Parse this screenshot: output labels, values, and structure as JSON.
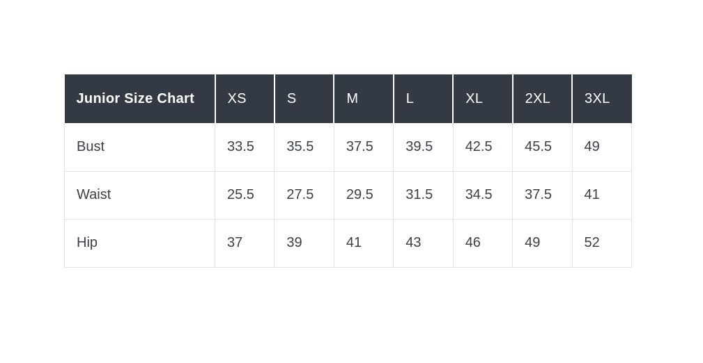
{
  "colors": {
    "header_background": "#343a44",
    "header_text": "#ffffff",
    "header_divider": "#ffffff",
    "body_text": "#3b4046",
    "body_border": "#e1e4e7",
    "page_background": "#ffffff"
  },
  "chart_data": {
    "type": "table",
    "title": "Junior Size Chart",
    "columns": [
      "XS",
      "S",
      "M",
      "L",
      "XL",
      "2XL",
      "3XL"
    ],
    "rows": [
      {
        "label": "Bust",
        "values": [
          "33.5",
          "35.5",
          "37.5",
          "39.5",
          "42.5",
          "45.5",
          "49"
        ]
      },
      {
        "label": "Waist",
        "values": [
          "25.5",
          "27.5",
          "29.5",
          "31.5",
          "34.5",
          "37.5",
          "41"
        ]
      },
      {
        "label": "Hip",
        "values": [
          "37",
          "39",
          "41",
          "43",
          "46",
          "49",
          "52"
        ]
      }
    ]
  }
}
